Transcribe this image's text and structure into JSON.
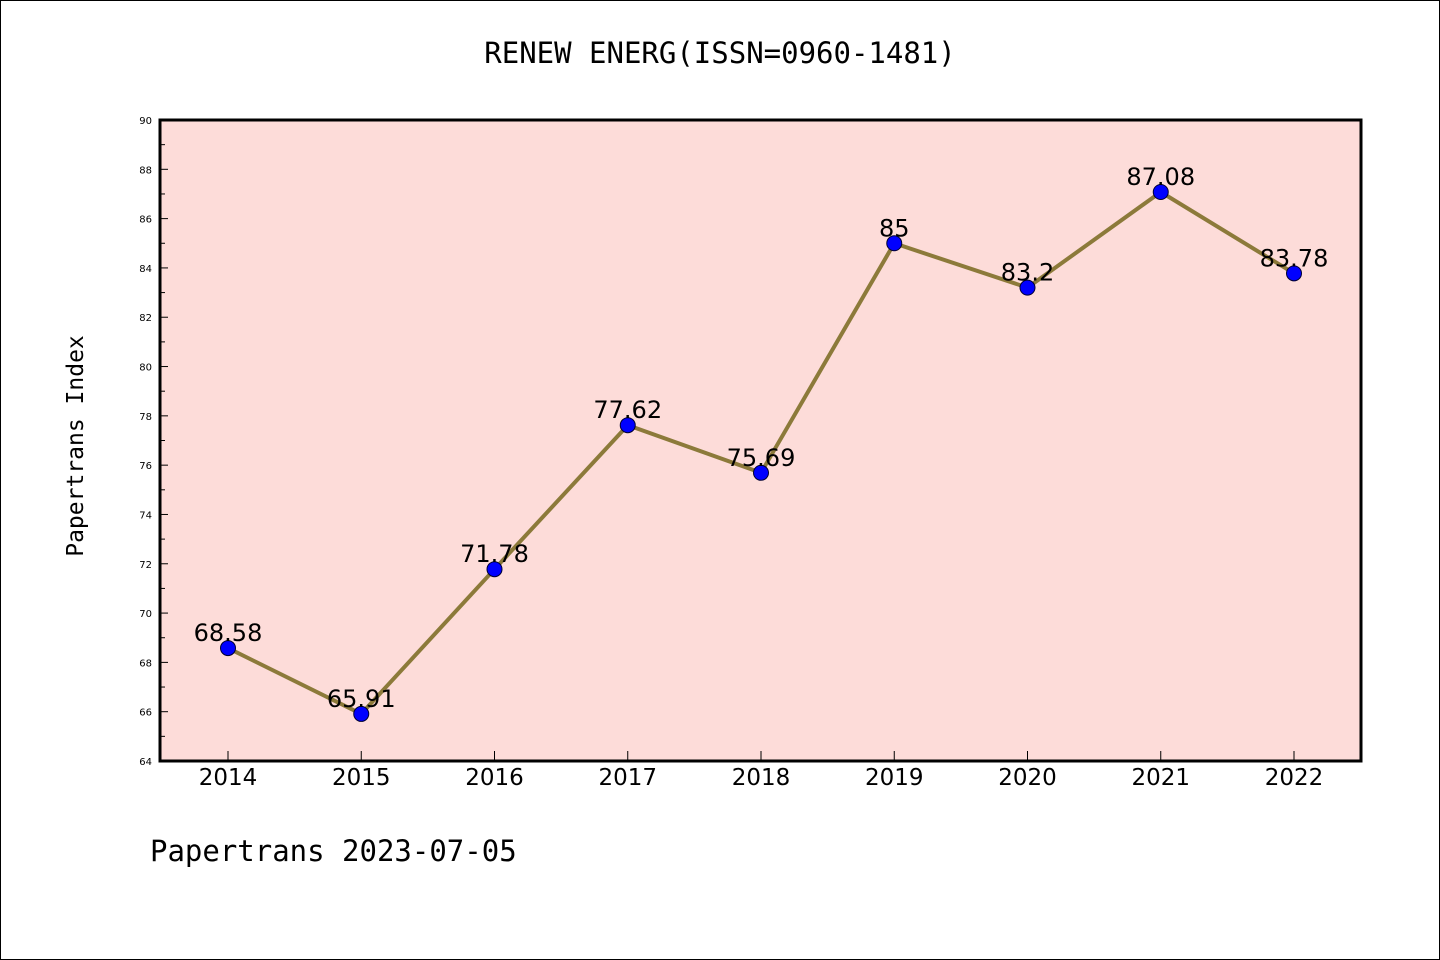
{
  "title": "RENEW ENERG(ISSN=0960-1481)",
  "ylabel": "Papertrans Index",
  "footer": "Papertrans 2023-07-05",
  "colors": {
    "plot_background": "#fddcd9",
    "line": "#8c7a3a",
    "marker": "#0000ff"
  },
  "chart_data": {
    "type": "line",
    "title": "RENEW ENERG(ISSN=0960-1481)",
    "xlabel": "",
    "ylabel": "Papertrans Index",
    "categories": [
      "2014",
      "2015",
      "2016",
      "2017",
      "2018",
      "2019",
      "2020",
      "2021",
      "2022"
    ],
    "values": [
      68.58,
      65.91,
      71.78,
      77.62,
      75.69,
      85,
      83.2,
      87.08,
      83.78
    ],
    "value_labels": [
      "68.58",
      "65.91",
      "71.78",
      "77.62",
      "75.69",
      "85",
      "83.2",
      "87.08",
      "83.78"
    ],
    "ylim": [
      64,
      90
    ],
    "yticks": [
      64,
      66,
      68,
      70,
      72,
      74,
      76,
      78,
      80,
      82,
      84,
      86,
      88,
      90
    ],
    "grid": false,
    "legend": "none"
  }
}
